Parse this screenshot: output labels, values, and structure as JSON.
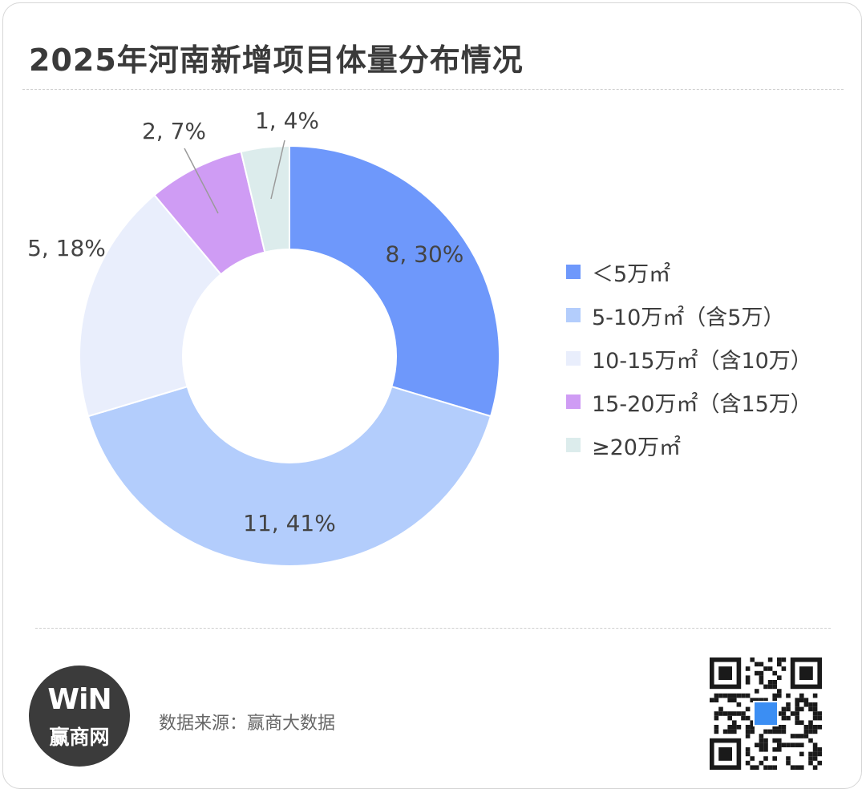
{
  "title": "2025年河南新增项目体量分布情况",
  "chart_data": {
    "type": "pie",
    "donut": true,
    "title": "2025年河南新增项目体量分布情况",
    "legend_position": "right",
    "slices": [
      {
        "name": "＜5万㎡",
        "value": 8,
        "percent": "30%",
        "label": "8, 30%",
        "color": "#6e98fb"
      },
      {
        "name": "5-10万㎡（含5万）",
        "value": 11,
        "percent": "41%",
        "label": "11, 41%",
        "color": "#b3cdfc"
      },
      {
        "name": "10-15万㎡（含10万）",
        "value": 5,
        "percent": "18%",
        "label": "5, 18%",
        "color": "#e9eefc"
      },
      {
        "name": "15-20万㎡（含15万）",
        "value": 2,
        "percent": "7%",
        "label": "2, 7%",
        "color": "#cf9cf4"
      },
      {
        "name": "≥20万㎡",
        "value": 1,
        "percent": "4%",
        "label": "1, 4%",
        "color": "#dcecec"
      }
    ]
  },
  "footer": {
    "source": "数据来源：赢商大数据",
    "logo_mark": "WiN",
    "logo_text": "赢商网"
  },
  "icons": {
    "logo": "winshang-logo",
    "qr": "qr-code-icon"
  }
}
